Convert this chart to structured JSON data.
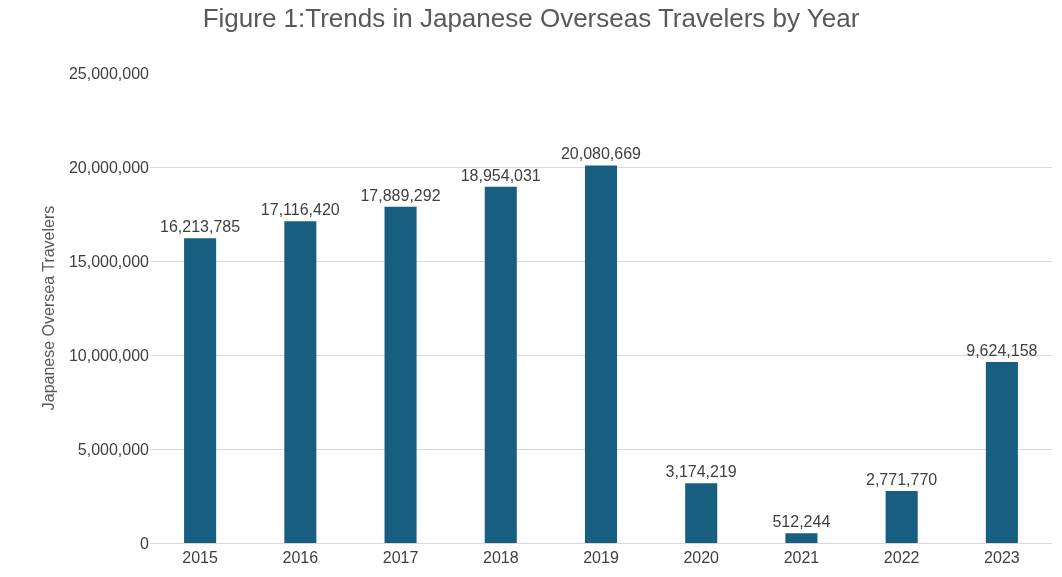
{
  "chart_data": {
    "type": "bar",
    "title": "Figure 1:Trends in Japanese Overseas Travelers by Year",
    "ylabel": "Japanese Oversea Travelers",
    "categories": [
      "2015",
      "2016",
      "2017",
      "2018",
      "2019",
      "2020",
      "2021",
      "2022",
      "2023"
    ],
    "values": [
      16213785,
      17116420,
      17889292,
      18954031,
      20080669,
      3174219,
      512244,
      2771770,
      9624158
    ],
    "value_labels": [
      "16,213,785",
      "17,116,420",
      "17,889,292",
      "18,954,031",
      "20,080,669",
      "3,174,219",
      "512,244",
      "2,771,770",
      "9,624,158"
    ],
    "color": "#175e80",
    "ylim": [
      0,
      25000000
    ],
    "yticks": [
      {
        "value": 0,
        "label": "0"
      },
      {
        "value": 5000000,
        "label": "5,000,000"
      },
      {
        "value": 10000000,
        "label": "10,000,000"
      },
      {
        "value": 15000000,
        "label": "15,000,000"
      },
      {
        "value": 20000000,
        "label": "20,000,000"
      },
      {
        "value": 25000000,
        "label": "25,000,000"
      }
    ],
    "grid": "y"
  }
}
